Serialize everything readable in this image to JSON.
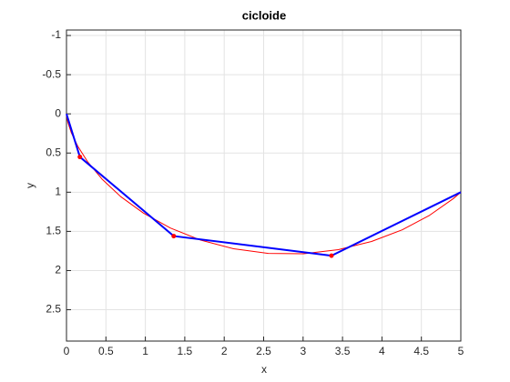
{
  "chart_data": {
    "type": "line",
    "title": "cicloide",
    "x_label": "x",
    "y_label": "y",
    "xlim": [
      0,
      5
    ],
    "ylim": [
      -1.07,
      2.9
    ],
    "y_reversed": true,
    "grid": true,
    "xticks": [
      0,
      0.5,
      1,
      1.5,
      2,
      2.5,
      3,
      3.5,
      4,
      4.5,
      5
    ],
    "yticks": [
      -1,
      -0.5,
      0,
      0.5,
      1,
      1.5,
      2,
      2.5
    ],
    "series": [
      {
        "color": "#ff0000",
        "style": "line",
        "x": [
          0,
          0.002,
          0.018,
          0.061,
          0.142,
          0.269,
          0.45,
          0.686,
          0.976,
          1.317,
          1.702,
          2.12,
          2.559,
          3.006,
          3.447,
          3.868,
          4.257,
          4.605,
          4.902,
          5
        ],
        "values": [
          0,
          0.028,
          0.11,
          0.24,
          0.411,
          0.613,
          0.832,
          1.055,
          1.267,
          1.457,
          1.612,
          1.722,
          1.781,
          1.785,
          1.733,
          1.629,
          1.48,
          1.294,
          1.084,
          1
        ]
      },
      {
        "color": "#0000ff",
        "style": "line",
        "x": [
          0,
          0.17,
          1.36,
          3.36,
          5
        ],
        "values": [
          0,
          0.55,
          1.56,
          1.81,
          1
        ]
      },
      {
        "color": "#ff0000",
        "style": "dots",
        "x": [
          0.17,
          1.36,
          3.36
        ],
        "values": [
          0.55,
          1.56,
          1.81
        ]
      }
    ]
  }
}
